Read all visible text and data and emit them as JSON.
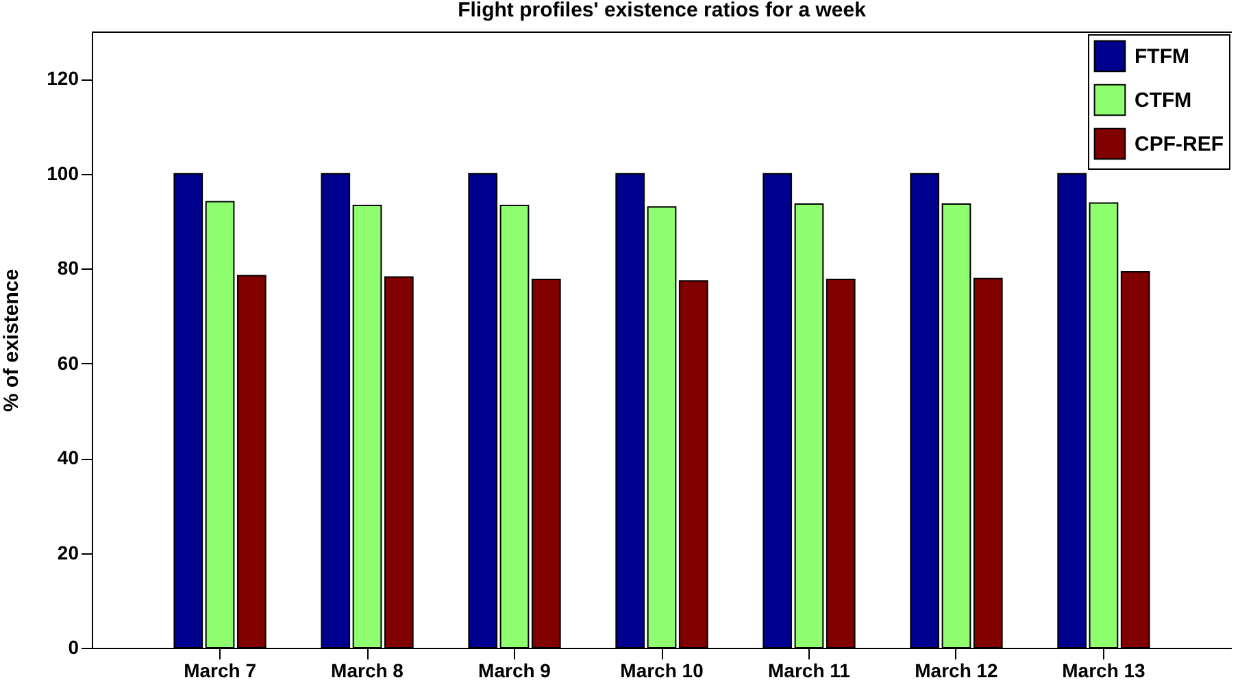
{
  "chart_data": {
    "type": "bar",
    "title": "Flight profiles' existence ratios for a week",
    "ylabel": "% of existence",
    "categories": [
      "March 7",
      "March 8",
      "March 9",
      "March 10",
      "March 11",
      "March 12",
      "March 13"
    ],
    "series": [
      {
        "name": "FTFM",
        "color": "#00008f",
        "values": [
          100,
          100,
          100,
          100,
          100,
          100,
          100
        ]
      },
      {
        "name": "CTFM",
        "color": "#8fff6f",
        "values": [
          94.1,
          93.3,
          93.3,
          93.0,
          93.6,
          93.6,
          93.8
        ]
      },
      {
        "name": "CPF-REF",
        "color": "#800000",
        "values": [
          78.5,
          78.2,
          77.7,
          77.4,
          77.7,
          77.9,
          79.3
        ]
      }
    ],
    "ylim": [
      0,
      130
    ],
    "yticks": [
      0,
      20,
      40,
      60,
      80,
      100,
      120
    ],
    "grid": false,
    "legend": "top right"
  }
}
